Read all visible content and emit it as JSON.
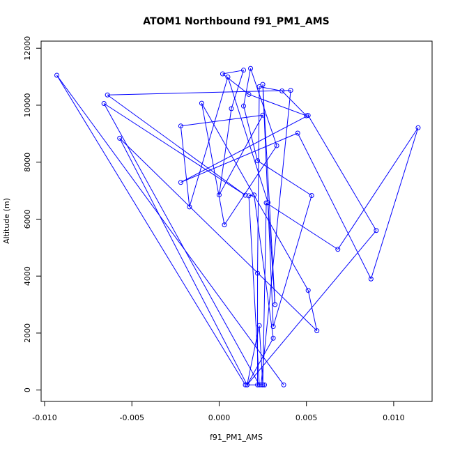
{
  "chart_data": {
    "type": "line",
    "title": "ATOM1 Northbound f91_PM1_AMS",
    "xlabel": "f91_PM1_AMS",
    "ylabel": "Altitude (m)",
    "xlim": [
      -0.0102,
      0.0122
    ],
    "ylim": [
      -400,
      12250
    ],
    "xticks": [
      -0.01,
      -0.005,
      0.0,
      0.005,
      0.01
    ],
    "xtick_labels": [
      "-0.010",
      "-0.005",
      "0.000",
      "0.005",
      "0.010"
    ],
    "yticks": [
      0,
      2000,
      4000,
      6000,
      8000,
      10000,
      12000
    ],
    "ytick_labels": [
      "0",
      "2000",
      "4000",
      "6000",
      "8000",
      "10000",
      "12000"
    ],
    "grid": false,
    "series": [
      {
        "color": "#0000ff",
        "marker": "open-circle",
        "x": [
          0.0037,
          -0.0093,
          0.0015,
          0.0025,
          0.0022,
          0.0022,
          0.0023,
          0.0036,
          0.005,
          0.0017,
          0.0002,
          0.0014,
          0.0007,
          0.0,
          0.0025,
          -0.0022,
          -0.0017,
          0.0005,
          0.0028,
          0.0032,
          0.0025,
          0.0031,
          0.0053,
          0.0022,
          0.0014,
          0.0018,
          0.0033,
          0.0003,
          -0.001,
          0.0051,
          0.0056,
          -0.0057,
          0.0016,
          0.009,
          0.0051,
          -0.0022,
          0.0045,
          0.0087,
          0.0114,
          0.0068,
          0.0027,
          0.0025,
          0.0023,
          0.0016,
          0.0031,
          0.002,
          0.0017,
          0.0023,
          -0.0066,
          0.0015,
          -0.0064,
          0.0041,
          0.0024,
          0.0026
        ],
        "y": [
          180,
          11050,
          180,
          180,
          180,
          4100,
          10650,
          10500,
          9630,
          10380,
          11100,
          11230,
          9880,
          6850,
          9650,
          9270,
          6430,
          10990,
          6580,
          3000,
          10730,
          2230,
          6830,
          8050,
          9970,
          11290,
          8580,
          5800,
          10070,
          3500,
          2080,
          8840,
          180,
          5600,
          9640,
          7290,
          9020,
          3900,
          9210,
          4940,
          6570,
          180,
          2260,
          180,
          1820,
          6850,
          6820,
          180,
          10060,
          6840,
          10360,
          10520,
          180,
          180
        ]
      }
    ]
  }
}
